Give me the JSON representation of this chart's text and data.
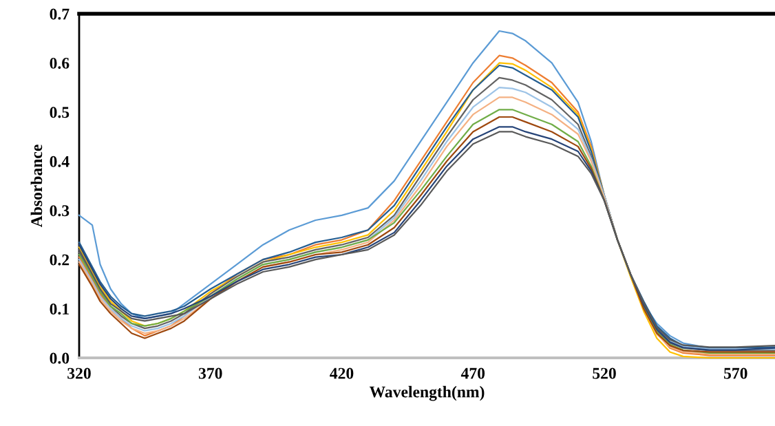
{
  "chart_data": {
    "type": "line",
    "xlabel": "Wavelength(nm)",
    "ylabel": "Absorbance",
    "xlim": [
      320,
      585
    ],
    "xticks": [
      320,
      370,
      420,
      470,
      520,
      570
    ],
    "ylim": [
      0,
      0.7
    ],
    "yticks": [
      {
        "value": 0,
        "label": "0.0"
      },
      0.1,
      0.2,
      0.3,
      0.4,
      0.5,
      0.6,
      0.7
    ],
    "grid": false,
    "marker": "none",
    "line_style": "solid",
    "x": [
      320,
      325,
      328,
      332,
      336,
      340,
      345,
      350,
      355,
      360,
      370,
      380,
      390,
      400,
      410,
      420,
      430,
      440,
      450,
      460,
      470,
      480,
      485,
      490,
      500,
      510,
      515,
      520,
      525,
      530,
      535,
      540,
      545,
      550,
      560,
      570,
      585
    ],
    "series": [
      {
        "color": "#5b9bd5",
        "values": [
          0.29,
          0.27,
          0.19,
          0.14,
          0.11,
          0.09,
          0.08,
          0.085,
          0.09,
          0.11,
          0.15,
          0.19,
          0.23,
          0.26,
          0.28,
          0.29,
          0.305,
          0.36,
          0.44,
          0.52,
          0.6,
          0.665,
          0.66,
          0.645,
          0.6,
          0.52,
          0.44,
          0.33,
          0.24,
          0.17,
          0.11,
          0.07,
          0.045,
          0.03,
          0.02,
          0.02,
          0.02
        ]
      },
      {
        "color": "#ed7d31",
        "values": [
          0.205,
          0.16,
          0.13,
          0.1,
          0.08,
          0.06,
          0.045,
          0.055,
          0.065,
          0.085,
          0.13,
          0.17,
          0.2,
          0.21,
          0.23,
          0.24,
          0.26,
          0.32,
          0.4,
          0.48,
          0.56,
          0.615,
          0.61,
          0.595,
          0.56,
          0.5,
          0.43,
          0.33,
          0.24,
          0.17,
          0.1,
          0.05,
          0.02,
          0.01,
          0.005,
          0.005,
          0.005
        ]
      },
      {
        "color": "#ffc000",
        "values": [
          0.225,
          0.175,
          0.145,
          0.115,
          0.095,
          0.075,
          0.065,
          0.07,
          0.08,
          0.095,
          0.135,
          0.165,
          0.195,
          0.21,
          0.225,
          0.235,
          0.25,
          0.3,
          0.38,
          0.46,
          0.545,
          0.6,
          0.598,
          0.585,
          0.55,
          0.495,
          0.425,
          0.33,
          0.24,
          0.165,
          0.095,
          0.04,
          0.012,
          0.003,
          0.0,
          0.0,
          0.0
        ]
      },
      {
        "color": "#255e91",
        "values": [
          0.235,
          0.185,
          0.155,
          0.125,
          0.105,
          0.09,
          0.085,
          0.09,
          0.095,
          0.105,
          0.14,
          0.17,
          0.2,
          0.215,
          0.235,
          0.245,
          0.26,
          0.31,
          0.39,
          0.47,
          0.545,
          0.595,
          0.59,
          0.575,
          0.545,
          0.49,
          0.42,
          0.33,
          0.24,
          0.17,
          0.115,
          0.065,
          0.04,
          0.025,
          0.02,
          0.02,
          0.022
        ]
      },
      {
        "color": "#636363",
        "values": [
          0.215,
          0.165,
          0.135,
          0.105,
          0.085,
          0.07,
          0.06,
          0.065,
          0.075,
          0.09,
          0.13,
          0.165,
          0.195,
          0.205,
          0.22,
          0.23,
          0.245,
          0.29,
          0.37,
          0.45,
          0.525,
          0.57,
          0.565,
          0.555,
          0.525,
          0.475,
          0.41,
          0.33,
          0.24,
          0.17,
          0.105,
          0.055,
          0.03,
          0.02,
          0.015,
          0.015,
          0.015
        ]
      },
      {
        "color": "#9dc3e6",
        "values": [
          0.2,
          0.155,
          0.125,
          0.1,
          0.08,
          0.065,
          0.055,
          0.06,
          0.07,
          0.085,
          0.125,
          0.16,
          0.19,
          0.2,
          0.215,
          0.225,
          0.24,
          0.285,
          0.36,
          0.44,
          0.51,
          0.55,
          0.548,
          0.54,
          0.51,
          0.465,
          0.405,
          0.33,
          0.24,
          0.17,
          0.11,
          0.06,
          0.035,
          0.023,
          0.018,
          0.018,
          0.018
        ]
      },
      {
        "color": "#f4b183",
        "values": [
          0.195,
          0.15,
          0.12,
          0.095,
          0.075,
          0.06,
          0.05,
          0.055,
          0.065,
          0.08,
          0.12,
          0.155,
          0.185,
          0.195,
          0.21,
          0.22,
          0.235,
          0.28,
          0.35,
          0.43,
          0.495,
          0.53,
          0.53,
          0.52,
          0.495,
          0.455,
          0.4,
          0.325,
          0.24,
          0.17,
          0.1,
          0.048,
          0.022,
          0.012,
          0.008,
          0.008,
          0.008
        ]
      },
      {
        "color": "#70ad47",
        "values": [
          0.21,
          0.165,
          0.135,
          0.105,
          0.09,
          0.07,
          0.065,
          0.07,
          0.08,
          0.095,
          0.125,
          0.16,
          0.19,
          0.2,
          0.215,
          0.225,
          0.24,
          0.275,
          0.34,
          0.41,
          0.475,
          0.505,
          0.505,
          0.495,
          0.475,
          0.44,
          0.39,
          0.32,
          0.24,
          0.17,
          0.105,
          0.052,
          0.027,
          0.016,
          0.01,
          0.01,
          0.01
        ]
      },
      {
        "color": "#9e480e",
        "values": [
          0.19,
          0.145,
          0.115,
          0.09,
          0.07,
          0.05,
          0.04,
          0.05,
          0.06,
          0.075,
          0.12,
          0.155,
          0.185,
          0.195,
          0.21,
          0.215,
          0.23,
          0.265,
          0.33,
          0.4,
          0.46,
          0.49,
          0.49,
          0.48,
          0.46,
          0.43,
          0.385,
          0.32,
          0.24,
          0.17,
          0.1,
          0.05,
          0.025,
          0.015,
          0.012,
          0.012,
          0.012
        ]
      },
      {
        "color": "#264478",
        "values": [
          0.23,
          0.18,
          0.15,
          0.12,
          0.1,
          0.085,
          0.08,
          0.085,
          0.09,
          0.1,
          0.125,
          0.155,
          0.18,
          0.19,
          0.205,
          0.21,
          0.225,
          0.255,
          0.32,
          0.39,
          0.445,
          0.47,
          0.47,
          0.46,
          0.445,
          0.42,
          0.38,
          0.32,
          0.24,
          0.17,
          0.108,
          0.058,
          0.032,
          0.021,
          0.016,
          0.016,
          0.02
        ]
      },
      {
        "color": "#595959",
        "values": [
          0.22,
          0.17,
          0.14,
          0.11,
          0.095,
          0.08,
          0.075,
          0.08,
          0.085,
          0.09,
          0.12,
          0.15,
          0.175,
          0.185,
          0.2,
          0.21,
          0.22,
          0.25,
          0.31,
          0.38,
          0.435,
          0.46,
          0.46,
          0.45,
          0.435,
          0.41,
          0.375,
          0.32,
          0.24,
          0.17,
          0.112,
          0.062,
          0.037,
          0.026,
          0.022,
          0.022,
          0.025
        ]
      }
    ]
  }
}
